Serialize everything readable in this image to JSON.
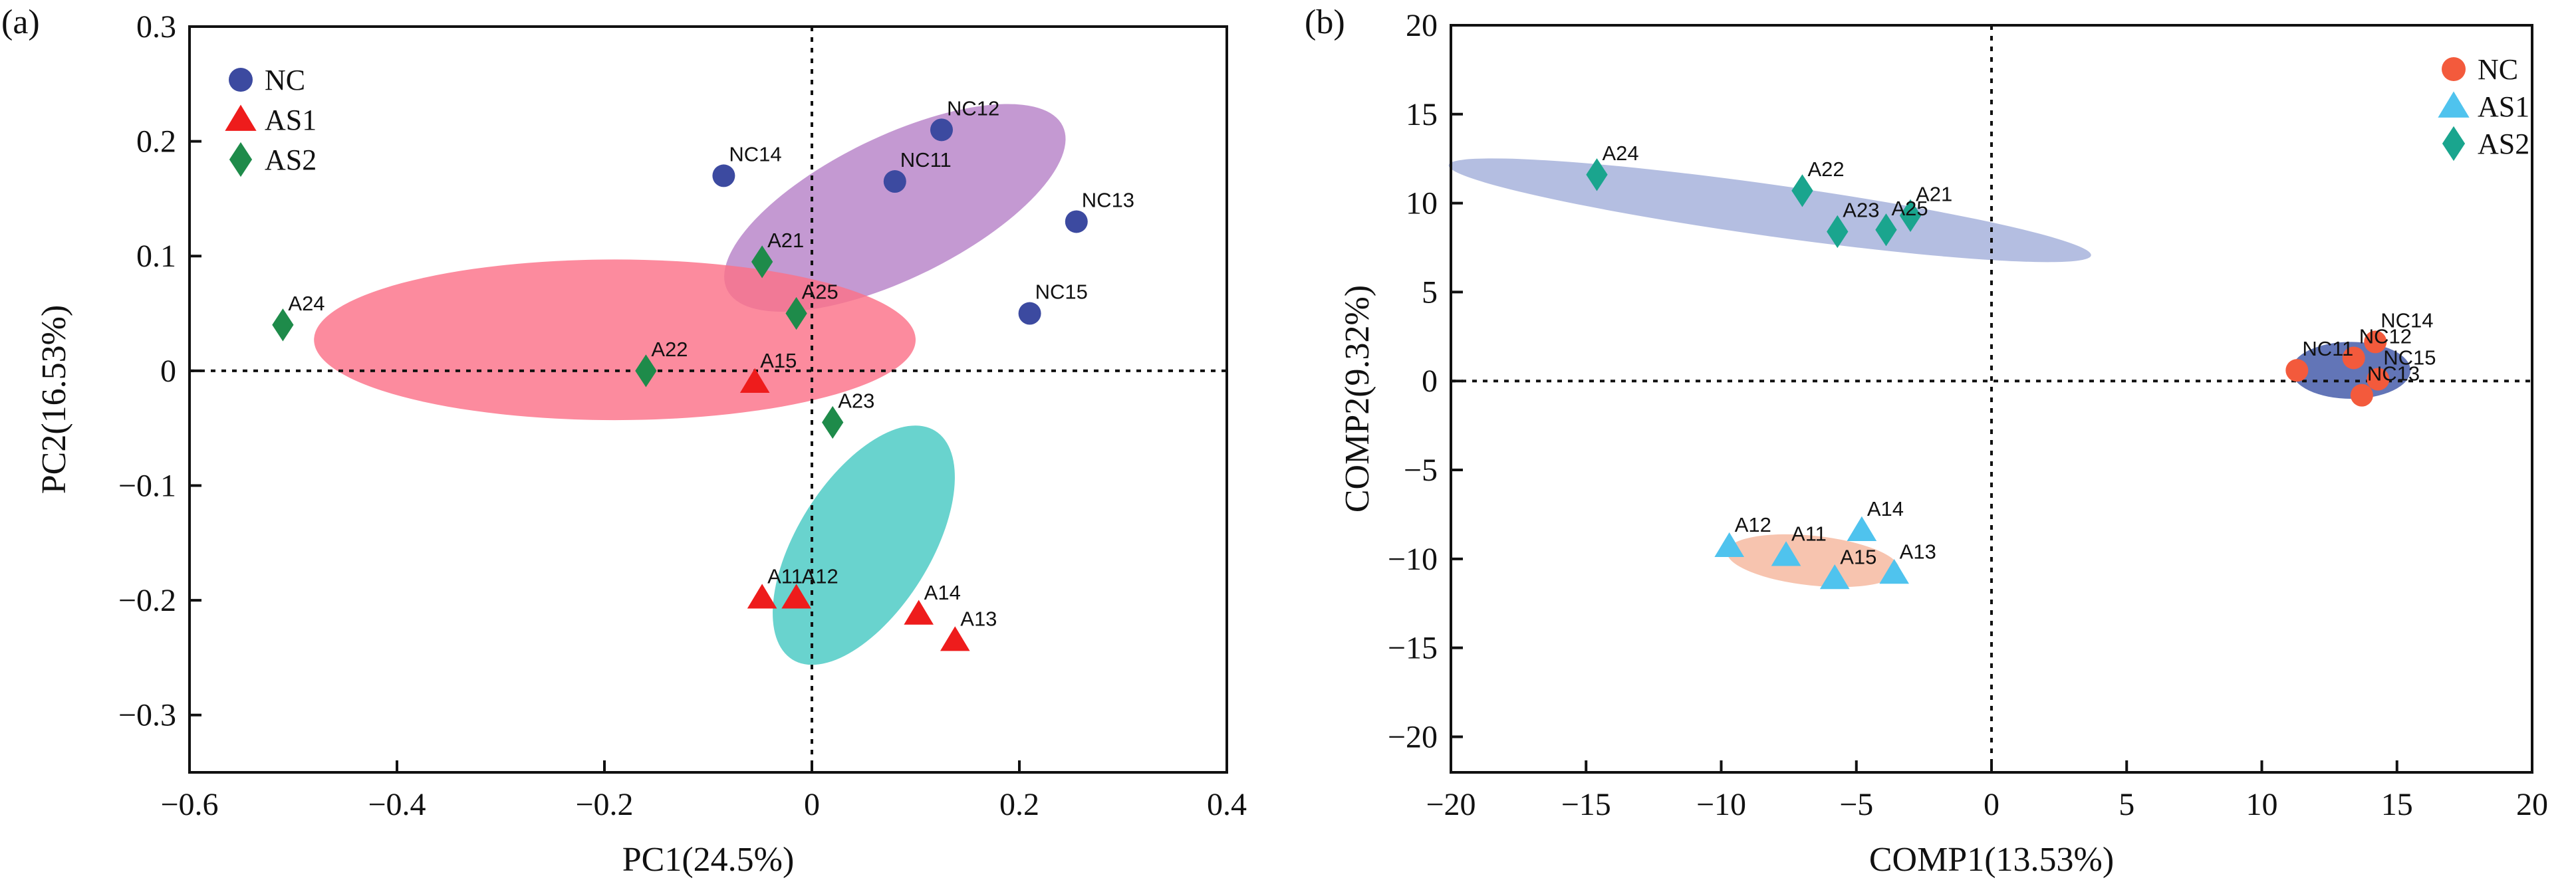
{
  "chart_data": [
    {
      "type": "scatter",
      "panel_label": "(a)",
      "xlabel": "PC1(24.5%)",
      "ylabel": "PC2(16.53%)",
      "xlim": [
        -0.6,
        0.4
      ],
      "ylim": [
        -0.35,
        0.3
      ],
      "xticks": [
        -0.6,
        -0.4,
        -0.2,
        0,
        0.2,
        0.4
      ],
      "xtick_labels": [
        "−0.6",
        "−0.4",
        "−0.2",
        "0",
        "0.2",
        "0.4"
      ],
      "yticks": [
        0.3,
        0.2,
        0.1,
        0,
        -0.1,
        -0.2,
        -0.3
      ],
      "ytick_labels": [
        "0.3",
        "0.2",
        "0.1",
        "0",
        "−0.1",
        "−0.2",
        "−0.3"
      ],
      "reference_lines": {
        "x": 0,
        "y": 0
      },
      "legend_position": "top-left",
      "series": [
        {
          "name": "NC",
          "marker": "circle",
          "color": "#3c4aa0",
          "points": [
            {
              "label": "NC12",
              "x": 0.125,
              "y": 0.21
            },
            {
              "label": "NC14",
              "x": -0.085,
              "y": 0.17
            },
            {
              "label": "NC11",
              "x": 0.08,
              "y": 0.165
            },
            {
              "label": "NC13",
              "x": 0.255,
              "y": 0.13
            },
            {
              "label": "NC15",
              "x": 0.21,
              "y": 0.05
            }
          ]
        },
        {
          "name": "AS1",
          "marker": "triangle",
          "color": "#ee1c1c",
          "points": [
            {
              "label": "A15",
              "x": -0.055,
              "y": -0.01
            },
            {
              "label": "A11",
              "x": -0.048,
              "y": -0.198
            },
            {
              "label": "A12",
              "x": -0.015,
              "y": -0.198
            },
            {
              "label": "A14",
              "x": 0.103,
              "y": -0.212
            },
            {
              "label": "A13",
              "x": 0.138,
              "y": -0.235
            }
          ]
        },
        {
          "name": "AS2",
          "marker": "diamond",
          "color": "#1e8b4a",
          "points": [
            {
              "label": "A24",
              "x": -0.51,
              "y": 0.04
            },
            {
              "label": "A21",
              "x": -0.048,
              "y": 0.095
            },
            {
              "label": "A25",
              "x": -0.015,
              "y": 0.05
            },
            {
              "label": "A22",
              "x": -0.16,
              "y": 0.0
            },
            {
              "label": "A23",
              "x": 0.02,
              "y": -0.045
            }
          ]
        }
      ],
      "ellipses": [
        {
          "group": "NC",
          "color": "#b782c8",
          "cx": 0.08,
          "cy": 0.142,
          "rx": 0.18,
          "ry": 0.062,
          "angle_deg": 26
        },
        {
          "group": "AS1",
          "color": "#48c9c3",
          "cx": 0.05,
          "cy": -0.152,
          "rx": 0.13,
          "ry": 0.058,
          "angle_deg": 58
        },
        {
          "group": "AS2",
          "color": "#fb7189",
          "cx": -0.19,
          "cy": 0.027,
          "rx": 0.29,
          "ry": 0.07,
          "angle_deg": 0
        }
      ]
    },
    {
      "type": "scatter",
      "panel_label": "(b)",
      "xlabel": "COMP1(13.53%)",
      "ylabel": "COMP2(9.32%)",
      "xlim": [
        -20,
        20
      ],
      "ylim": [
        -22,
        20
      ],
      "xticks": [
        -20,
        -15,
        -10,
        -5,
        0,
        5,
        10,
        15,
        20
      ],
      "xtick_labels": [
        "−20",
        "−15",
        "−10",
        "−5",
        "0",
        "5",
        "10",
        "15",
        "20"
      ],
      "yticks": [
        20,
        15,
        10,
        5,
        0,
        -5,
        -10,
        -15,
        -20
      ],
      "ytick_labels": [
        "20",
        "15",
        "10",
        "5",
        "0",
        "−5",
        "−10",
        "−15",
        "−20"
      ],
      "reference_lines": {
        "x": 0,
        "y": 0
      },
      "legend_position": "top-right",
      "series": [
        {
          "name": "NC",
          "marker": "circle",
          "color": "#f35a3c",
          "points": [
            {
              "label": "NC14",
              "x": 14.2,
              "y": 2.2
            },
            {
              "label": "NC12",
              "x": 13.4,
              "y": 1.3
            },
            {
              "label": "NC11",
              "x": 11.3,
              "y": 0.6
            },
            {
              "label": "NC15",
              "x": 14.3,
              "y": 0.1
            },
            {
              "label": "NC13",
              "x": 13.7,
              "y": -0.8
            }
          ]
        },
        {
          "name": "AS1",
          "marker": "triangle",
          "color": "#4fc3ee",
          "points": [
            {
              "label": "A14",
              "x": -4.8,
              "y": -8.4
            },
            {
              "label": "A12",
              "x": -9.7,
              "y": -9.3
            },
            {
              "label": "A11",
              "x": -7.6,
              "y": -9.8
            },
            {
              "label": "A15",
              "x": -5.8,
              "y": -11.1
            },
            {
              "label": "A13",
              "x": -3.6,
              "y": -10.8
            }
          ]
        },
        {
          "name": "AS2",
          "marker": "diamond",
          "color": "#1aa58e",
          "points": [
            {
              "label": "A24",
              "x": -14.6,
              "y": 11.6
            },
            {
              "label": "A22",
              "x": -7.0,
              "y": 10.7
            },
            {
              "label": "A21",
              "x": -3.0,
              "y": 9.3
            },
            {
              "label": "A25",
              "x": -3.9,
              "y": 8.5
            },
            {
              "label": "A23",
              "x": -5.7,
              "y": 8.4
            }
          ]
        }
      ],
      "ellipses": [
        {
          "group": "NC",
          "color": "#3f57a7",
          "cx": 13.3,
          "cy": 0.6,
          "rx": 2.2,
          "ry": 1.6,
          "angle_deg": 0
        },
        {
          "group": "AS1",
          "color": "#f5b79e",
          "cx": -6.6,
          "cy": -10.1,
          "rx": 3.2,
          "ry": 1.4,
          "angle_deg": -6
        },
        {
          "group": "AS2",
          "color": "#a3b0da",
          "cx": -8.2,
          "cy": 9.6,
          "rx": 12.0,
          "ry": 1.45,
          "angle_deg": -8
        }
      ]
    }
  ]
}
